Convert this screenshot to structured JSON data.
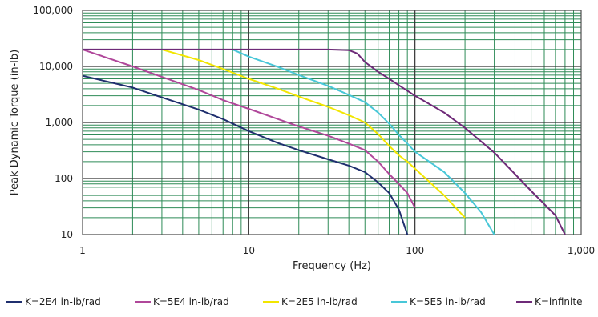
{
  "chart_data": {
    "type": "line",
    "title": "",
    "xlabel": "Frequency (Hz)",
    "ylabel": "Peak Dynamic Torque (in-lb)",
    "x_scale": "log",
    "y_scale": "log",
    "xlim": [
      1,
      1000
    ],
    "ylim": [
      10,
      100000
    ],
    "x_ticks": [
      1,
      10,
      100,
      1000
    ],
    "x_tick_labels": [
      "1",
      "10",
      "100",
      "1,000"
    ],
    "y_ticks": [
      10,
      100,
      1000,
      10000,
      100000
    ],
    "y_tick_labels": [
      "10",
      "100",
      "1,000",
      "10,000",
      "100,000"
    ],
    "grid": true,
    "grid_color": "#2e8b57",
    "legend_position": "bottom",
    "series": [
      {
        "name": "K=2E4 in-lb/rad",
        "color": "#1f2f6e",
        "x": [
          1,
          2,
          3,
          5,
          7,
          10,
          15,
          20,
          30,
          40,
          50,
          60,
          70,
          80,
          90
        ],
        "y": [
          6800,
          4200,
          2800,
          1700,
          1150,
          700,
          430,
          320,
          220,
          170,
          130,
          85,
          55,
          28,
          10
        ]
      },
      {
        "name": "K=5E4 in-lb/rad",
        "color": "#b0479a",
        "x": [
          1,
          2,
          3,
          5,
          7,
          10,
          15,
          20,
          30,
          40,
          50,
          60,
          70,
          80,
          90,
          100
        ],
        "y": [
          20000,
          10000,
          6500,
          3800,
          2500,
          1750,
          1150,
          850,
          580,
          420,
          320,
          200,
          120,
          80,
          55,
          30
        ]
      },
      {
        "name": "K=2E5 in-lb/rad",
        "color": "#f2e600",
        "x": [
          3,
          5,
          7,
          10,
          15,
          20,
          30,
          40,
          50,
          60,
          70,
          80,
          90,
          100,
          150,
          200
        ],
        "y": [
          20000,
          13000,
          9000,
          6000,
          4000,
          2900,
          1900,
          1350,
          1000,
          620,
          380,
          260,
          200,
          150,
          50,
          20
        ]
      },
      {
        "name": "K=5E5 in-lb/rad",
        "color": "#48c7d8",
        "x": [
          8,
          10,
          15,
          20,
          30,
          40,
          50,
          60,
          70,
          80,
          90,
          100,
          150,
          200,
          250,
          300
        ],
        "y": [
          20000,
          15000,
          9800,
          7000,
          4500,
          3100,
          2300,
          1500,
          950,
          600,
          420,
          300,
          130,
          55,
          25,
          10
        ]
      },
      {
        "name": "K=infinite",
        "color": "#6e2a78",
        "x": [
          1,
          10,
          30,
          40,
          45,
          50,
          60,
          70,
          80,
          100,
          150,
          200,
          300,
          400,
          500,
          600,
          700,
          800
        ],
        "y": [
          20000,
          20000,
          20000,
          19500,
          17000,
          12000,
          8000,
          6000,
          4600,
          3000,
          1500,
          800,
          290,
          120,
          60,
          35,
          22,
          10
        ]
      }
    ]
  }
}
